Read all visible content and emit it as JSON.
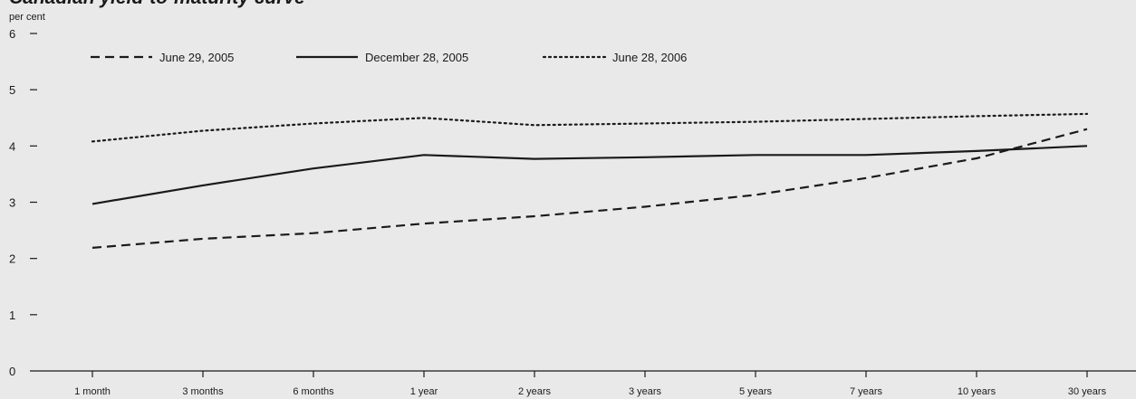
{
  "chart_data": {
    "type": "line",
    "title": "Canadian yield-to-maturity curve",
    "ylabel": "per cent",
    "xlabel": "",
    "ylim": [
      0,
      6
    ],
    "yticks": [
      0,
      1,
      2,
      3,
      4,
      5,
      6
    ],
    "grid": false,
    "legend_position": "top",
    "categories": [
      "1 month",
      "3 months",
      "6 months",
      "1 year",
      "2 years",
      "3 years",
      "5 years",
      "7 years",
      "10 years",
      "30 years"
    ],
    "series": [
      {
        "name": "June 29, 2005",
        "style": "dashed",
        "color": "#1a1a1a",
        "values": [
          2.19,
          2.35,
          2.45,
          2.62,
          2.75,
          2.92,
          3.13,
          3.43,
          3.78,
          4.3
        ]
      },
      {
        "name": "December 28, 2005",
        "style": "solid",
        "color": "#1a1a1a",
        "values": [
          2.97,
          3.3,
          3.6,
          3.84,
          3.77,
          3.8,
          3.84,
          3.84,
          3.91,
          4.0
        ]
      },
      {
        "name": "June 28, 2006",
        "style": "dotted",
        "color": "#1a1a1a",
        "values": [
          4.08,
          4.27,
          4.4,
          4.5,
          4.37,
          4.4,
          4.43,
          4.48,
          4.53,
          4.57
        ]
      }
    ]
  }
}
